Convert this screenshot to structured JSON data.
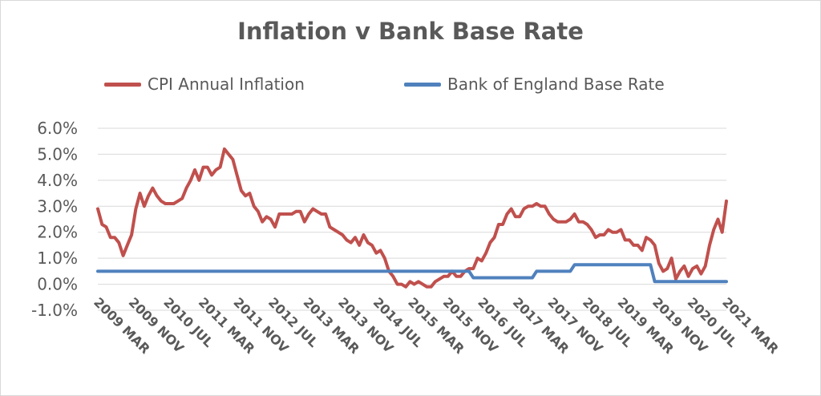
{
  "chart_data": {
    "type": "line",
    "title": "Inflation v Bank Base Rate",
    "xlabel": "",
    "ylabel": "",
    "ylim": [
      -1.0,
      6.0
    ],
    "yticks": [
      "-1.0%",
      "0.0%",
      "1.0%",
      "2.0%",
      "3.0%",
      "4.0%",
      "5.0%",
      "6.0%"
    ],
    "ytick_values": [
      -1,
      0,
      1,
      2,
      3,
      4,
      5,
      6
    ],
    "xtick_labels": [
      "2009 MAR",
      "2009 NOV",
      "2010 JUL",
      "2011 MAR",
      "2011 NOV",
      "2012 JUL",
      "2013 MAR",
      "2013 NOV",
      "2014 JUL",
      "2015 MAR",
      "2015 NOV",
      "2016 JUL",
      "2017 MAR",
      "2017 NOV",
      "2018 JUL",
      "2019 MAR",
      "2019 NOV",
      "2020 JUL",
      "2021 MAR"
    ],
    "x_range": [
      "2009-03",
      "2021-03"
    ],
    "grid": true,
    "legend_position": "top",
    "series": [
      {
        "name": "CPI Annual Inflation",
        "color": "#c0504d",
        "points": [
          [
            "2009-03",
            2.9
          ],
          [
            "2009-04",
            2.3
          ],
          [
            "2009-05",
            2.2
          ],
          [
            "2009-06",
            1.8
          ],
          [
            "2009-07",
            1.8
          ],
          [
            "2009-08",
            1.6
          ],
          [
            "2009-09",
            1.1
          ],
          [
            "2009-10",
            1.5
          ],
          [
            "2009-11",
            1.9
          ],
          [
            "2009-12",
            2.9
          ],
          [
            "2010-01",
            3.5
          ],
          [
            "2010-02",
            3.0
          ],
          [
            "2010-03",
            3.4
          ],
          [
            "2010-04",
            3.7
          ],
          [
            "2010-05",
            3.4
          ],
          [
            "2010-06",
            3.2
          ],
          [
            "2010-07",
            3.1
          ],
          [
            "2010-08",
            3.1
          ],
          [
            "2010-09",
            3.1
          ],
          [
            "2010-10",
            3.2
          ],
          [
            "2010-11",
            3.3
          ],
          [
            "2010-12",
            3.7
          ],
          [
            "2011-01",
            4.0
          ],
          [
            "2011-02",
            4.4
          ],
          [
            "2011-03",
            4.0
          ],
          [
            "2011-04",
            4.5
          ],
          [
            "2011-05",
            4.5
          ],
          [
            "2011-06",
            4.2
          ],
          [
            "2011-07",
            4.4
          ],
          [
            "2011-08",
            4.5
          ],
          [
            "2011-09",
            5.2
          ],
          [
            "2011-10",
            5.0
          ],
          [
            "2011-11",
            4.8
          ],
          [
            "2011-12",
            4.2
          ],
          [
            "2012-01",
            3.6
          ],
          [
            "2012-02",
            3.4
          ],
          [
            "2012-03",
            3.5
          ],
          [
            "2012-04",
            3.0
          ],
          [
            "2012-05",
            2.8
          ],
          [
            "2012-06",
            2.4
          ],
          [
            "2012-07",
            2.6
          ],
          [
            "2012-08",
            2.5
          ],
          [
            "2012-09",
            2.2
          ],
          [
            "2012-10",
            2.7
          ],
          [
            "2012-11",
            2.7
          ],
          [
            "2012-12",
            2.7
          ],
          [
            "2013-01",
            2.7
          ],
          [
            "2013-02",
            2.8
          ],
          [
            "2013-03",
            2.8
          ],
          [
            "2013-04",
            2.4
          ],
          [
            "2013-05",
            2.7
          ],
          [
            "2013-06",
            2.9
          ],
          [
            "2013-07",
            2.8
          ],
          [
            "2013-08",
            2.7
          ],
          [
            "2013-09",
            2.7
          ],
          [
            "2013-10",
            2.2
          ],
          [
            "2013-11",
            2.1
          ],
          [
            "2013-12",
            2.0
          ],
          [
            "2014-01",
            1.9
          ],
          [
            "2014-02",
            1.7
          ],
          [
            "2014-03",
            1.6
          ],
          [
            "2014-04",
            1.8
          ],
          [
            "2014-05",
            1.5
          ],
          [
            "2014-06",
            1.9
          ],
          [
            "2014-07",
            1.6
          ],
          [
            "2014-08",
            1.5
          ],
          [
            "2014-09",
            1.2
          ],
          [
            "2014-10",
            1.3
          ],
          [
            "2014-11",
            1.0
          ],
          [
            "2014-12",
            0.5
          ],
          [
            "2015-01",
            0.3
          ],
          [
            "2015-02",
            0.0
          ],
          [
            "2015-03",
            0.0
          ],
          [
            "2015-04",
            -0.1
          ],
          [
            "2015-05",
            0.1
          ],
          [
            "2015-06",
            0.0
          ],
          [
            "2015-07",
            0.1
          ],
          [
            "2015-08",
            0.0
          ],
          [
            "2015-09",
            -0.1
          ],
          [
            "2015-10",
            -0.1
          ],
          [
            "2015-11",
            0.1
          ],
          [
            "2015-12",
            0.2
          ],
          [
            "2016-01",
            0.3
          ],
          [
            "2016-02",
            0.3
          ],
          [
            "2016-03",
            0.5
          ],
          [
            "2016-04",
            0.3
          ],
          [
            "2016-05",
            0.3
          ],
          [
            "2016-06",
            0.5
          ],
          [
            "2016-07",
            0.6
          ],
          [
            "2016-08",
            0.6
          ],
          [
            "2016-09",
            1.0
          ],
          [
            "2016-10",
            0.9
          ],
          [
            "2016-11",
            1.2
          ],
          [
            "2016-12",
            1.6
          ],
          [
            "2017-01",
            1.8
          ],
          [
            "2017-02",
            2.3
          ],
          [
            "2017-03",
            2.3
          ],
          [
            "2017-04",
            2.7
          ],
          [
            "2017-05",
            2.9
          ],
          [
            "2017-06",
            2.6
          ],
          [
            "2017-07",
            2.6
          ],
          [
            "2017-08",
            2.9
          ],
          [
            "2017-09",
            3.0
          ],
          [
            "2017-10",
            3.0
          ],
          [
            "2017-11",
            3.1
          ],
          [
            "2017-12",
            3.0
          ],
          [
            "2018-01",
            3.0
          ],
          [
            "2018-02",
            2.7
          ],
          [
            "2018-03",
            2.5
          ],
          [
            "2018-04",
            2.4
          ],
          [
            "2018-05",
            2.4
          ],
          [
            "2018-06",
            2.4
          ],
          [
            "2018-07",
            2.5
          ],
          [
            "2018-08",
            2.7
          ],
          [
            "2018-09",
            2.4
          ],
          [
            "2018-10",
            2.4
          ],
          [
            "2018-11",
            2.3
          ],
          [
            "2018-12",
            2.1
          ],
          [
            "2019-01",
            1.8
          ],
          [
            "2019-02",
            1.9
          ],
          [
            "2019-03",
            1.9
          ],
          [
            "2019-04",
            2.1
          ],
          [
            "2019-05",
            2.0
          ],
          [
            "2019-06",
            2.0
          ],
          [
            "2019-07",
            2.1
          ],
          [
            "2019-08",
            1.7
          ],
          [
            "2019-09",
            1.7
          ],
          [
            "2019-10",
            1.5
          ],
          [
            "2019-11",
            1.5
          ],
          [
            "2019-12",
            1.3
          ],
          [
            "2020-01",
            1.8
          ],
          [
            "2020-02",
            1.7
          ],
          [
            "2020-03",
            1.5
          ],
          [
            "2020-04",
            0.8
          ],
          [
            "2020-05",
            0.5
          ],
          [
            "2020-06",
            0.6
          ],
          [
            "2020-07",
            1.0
          ],
          [
            "2020-08",
            0.2
          ],
          [
            "2020-09",
            0.5
          ],
          [
            "2020-10",
            0.7
          ],
          [
            "2020-11",
            0.3
          ],
          [
            "2020-12",
            0.6
          ],
          [
            "2021-01",
            0.7
          ],
          [
            "2021-02",
            0.4
          ],
          [
            "2021-03",
            0.7
          ],
          [
            "2021-04",
            1.5
          ],
          [
            "2021-05",
            2.1
          ],
          [
            "2021-06",
            2.5
          ],
          [
            "2021-07",
            2.0
          ],
          [
            "2021-08",
            3.2
          ]
        ]
      },
      {
        "name": "Bank of England Base Rate",
        "color": "#4f81bd",
        "points": [
          [
            "2009-03",
            0.5
          ],
          [
            "2016-07",
            0.5
          ],
          [
            "2016-08",
            0.25
          ],
          [
            "2017-10",
            0.25
          ],
          [
            "2017-11",
            0.5
          ],
          [
            "2018-07",
            0.5
          ],
          [
            "2018-08",
            0.75
          ],
          [
            "2020-02",
            0.75
          ],
          [
            "2020-03",
            0.1
          ],
          [
            "2021-08",
            0.1
          ]
        ]
      }
    ]
  }
}
